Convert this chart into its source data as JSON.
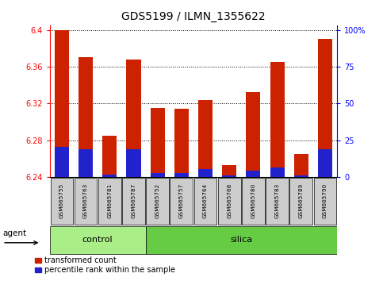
{
  "title": "GDS5199 / ILMN_1355622",
  "samples": [
    "GSM665755",
    "GSM665763",
    "GSM665781",
    "GSM665787",
    "GSM665752",
    "GSM665757",
    "GSM665764",
    "GSM665768",
    "GSM665780",
    "GSM665783",
    "GSM665789",
    "GSM665790"
  ],
  "groups": [
    "control",
    "control",
    "control",
    "control",
    "silica",
    "silica",
    "silica",
    "silica",
    "silica",
    "silica",
    "silica",
    "silica"
  ],
  "red_values": [
    6.4,
    6.37,
    6.285,
    6.368,
    6.315,
    6.314,
    6.324,
    6.253,
    6.332,
    6.365,
    6.265,
    6.39
  ],
  "blue_values": [
    6.273,
    6.27,
    6.243,
    6.27,
    6.244,
    6.244,
    6.249,
    6.242,
    6.247,
    6.25,
    6.242,
    6.27
  ],
  "y_min": 6.24,
  "y_max": 6.405,
  "y_ticks_left": [
    6.24,
    6.28,
    6.32,
    6.36,
    6.4
  ],
  "y_ticks_right": [
    0,
    25,
    50,
    75,
    100
  ],
  "right_tick_labels": [
    "0",
    "25",
    "50",
    "75",
    "100%"
  ],
  "bar_color_red": "#cc2200",
  "bar_color_blue": "#2222cc",
  "control_color": "#aaee88",
  "silica_color": "#66cc44",
  "bg_color": "#cccccc",
  "legend_red_label": "transformed count",
  "legend_blue_label": "percentile rank within the sample",
  "agent_label": "agent",
  "control_label": "control",
  "silica_label": "silica",
  "n_control": 4,
  "n_silica": 8
}
